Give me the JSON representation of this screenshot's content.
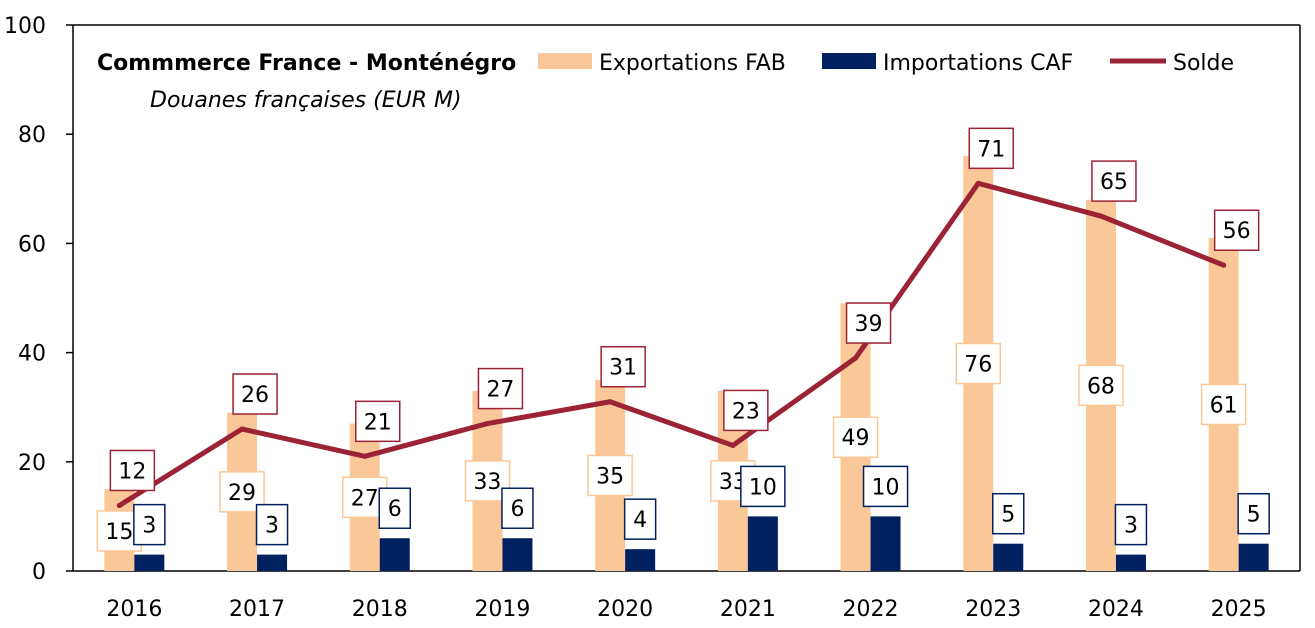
{
  "chart_data": {
    "type": "bar",
    "title": "Commmerce France - Monténégro",
    "subtitle": "Douanes françaises (EUR M)",
    "categories": [
      "2016",
      "2017",
      "2018",
      "2019",
      "2020",
      "2021",
      "2022",
      "2023",
      "2024",
      "2025"
    ],
    "series": [
      {
        "name": "Exportations FAB",
        "kind": "bar",
        "color": "#FAC898",
        "values": [
          15,
          29,
          27,
          33,
          35,
          33,
          49,
          76,
          68,
          61
        ]
      },
      {
        "name": "Importations CAF",
        "kind": "bar",
        "color": "#002060",
        "values": [
          3,
          3,
          6,
          6,
          4,
          10,
          10,
          5,
          3,
          5
        ]
      },
      {
        "name": "Solde",
        "kind": "line",
        "color": "#9B2335",
        "values": [
          12,
          26,
          21,
          27,
          31,
          23,
          39,
          71,
          65,
          56
        ]
      }
    ],
    "ylim": [
      0,
      100
    ],
    "yticks": [
      "0",
      "20",
      "40",
      "60",
      "80",
      "100"
    ],
    "grid": false,
    "legend_position": "top"
  }
}
